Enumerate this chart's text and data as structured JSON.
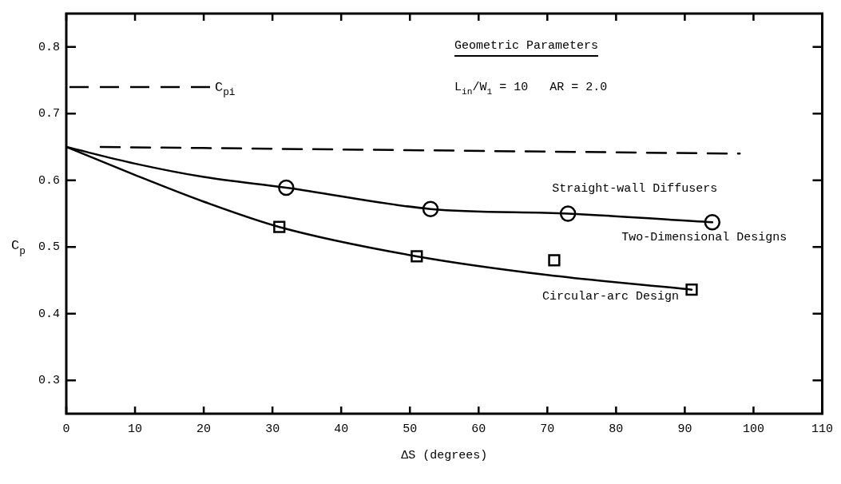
{
  "chart_data": {
    "type": "line",
    "xlabel": "ΔS (degrees)",
    "ylabel": "C$_{p}$",
    "annotations": [
      "Geometric Parameters",
      "L$_{in}$/W$_{1}$ = 10   AR = 2.0",
      "Straight-wall Diffusers",
      "Two-Dimensional Designs",
      "Circular-arc Design"
    ],
    "xlim": [
      0,
      110
    ],
    "xticks": [
      0,
      10,
      20,
      30,
      40,
      50,
      60,
      70,
      80,
      90,
      100,
      110
    ],
    "ylim": [
      0.25,
      0.85
    ],
    "yticks": [
      0.3,
      0.4,
      0.5,
      0.6,
      0.7,
      0.8
    ],
    "grid": false,
    "legend": "top left",
    "series": [
      {
        "x": [
          0,
          10,
          20,
          32,
          53,
          73,
          94
        ],
        "values": [
          0.65,
          0.625,
          0.605,
          0.589,
          0.557,
          0.55,
          0.537
        ],
        "color": "#000000",
        "marker": "none"
      },
      {
        "x": [
          0,
          10,
          20,
          31,
          51,
          70,
          91
        ],
        "values": [
          0.65,
          0.608,
          0.568,
          0.53,
          0.486,
          0.458,
          0.436
        ],
        "color": "#000000",
        "marker": "none"
      },
      {
        "type": "scatter",
        "x": [
          32,
          53,
          73,
          94
        ],
        "values": [
          0.589,
          0.557,
          0.55,
          0.537
        ],
        "color": "#000000",
        "marker": "circle"
      },
      {
        "type": "scatter",
        "x": [
          31,
          51,
          71,
          91
        ],
        "values": [
          0.53,
          0.486,
          0.48,
          0.436
        ],
        "color": "#000000",
        "marker": "square"
      },
      {
        "name": "C$_{pi}$",
        "x": [
          5,
          98
        ],
        "values": [
          0.65,
          0.64
        ],
        "color": "#000000",
        "line_style": "dashed",
        "marker": "none"
      }
    ]
  }
}
